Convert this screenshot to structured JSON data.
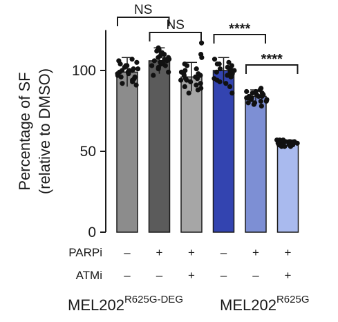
{
  "chart_data": {
    "type": "bar",
    "ylabel": "Percentage of SF",
    "ylabel_sub": "(relative to DMSO)",
    "ylim": [
      0,
      125
    ],
    "yticks": [
      0,
      50,
      100
    ],
    "grid": false,
    "conditions": [
      {
        "name": "PARPi",
        "values": [
          "–",
          "+",
          "+",
          "–",
          "+",
          "+"
        ]
      },
      {
        "name": "ATMi",
        "values": [
          "–",
          "–",
          "+",
          "–",
          "–",
          "+"
        ]
      }
    ],
    "groups": [
      {
        "name": "MEL202",
        "superscript": "R625G-DEG",
        "bars": [
          0,
          1,
          2
        ]
      },
      {
        "name": "MEL202",
        "superscript": "R625G",
        "bars": [
          3,
          4,
          5
        ]
      }
    ],
    "bars": [
      {
        "value": 99,
        "err": 9,
        "color": "#8c8c8c",
        "points": [
          93,
          96,
          99,
          101,
          103,
          97,
          100,
          105,
          91,
          95,
          102,
          98,
          104,
          100,
          94,
          107,
          97,
          101,
          99,
          96,
          103,
          92,
          100,
          98,
          106
        ]
      },
      {
        "value": 106,
        "err": 8,
        "color": "#5b5b5b",
        "points": [
          101,
          104,
          107,
          109,
          112,
          103,
          106,
          110,
          99,
          105,
          113,
          108,
          102,
          106,
          111,
          97,
          104,
          107,
          114,
          103,
          108,
          105
        ]
      },
      {
        "value": 96,
        "err": 9,
        "color": "#a6a6a6",
        "points": [
          88,
          92,
          95,
          98,
          101,
          90,
          94,
          97,
          100,
          104,
          86,
          93,
          96,
          99,
          91,
          95,
          103,
          117,
          108,
          110,
          97,
          89,
          94,
          98
        ]
      },
      {
        "value": 100,
        "err": 8,
        "color": "#3344b0",
        "points": [
          92,
          96,
          99,
          102,
          104,
          94,
          98,
          101,
          105,
          90,
          97,
          100,
          103,
          95,
          99,
          107,
          93,
          101,
          98,
          86,
          104,
          96,
          100
        ]
      },
      {
        "value": 84,
        "err": 4,
        "color": "#7d8fd4",
        "points": [
          79,
          81,
          83,
          85,
          87,
          80,
          82,
          84,
          86,
          88,
          78,
          83,
          85,
          81,
          84,
          89,
          82,
          86,
          80,
          84,
          83,
          87
        ]
      },
      {
        "value": 55,
        "err": 2,
        "color": "#a9baee",
        "points": [
          53,
          54,
          55,
          56,
          57,
          54,
          55,
          56,
          53,
          55,
          57,
          54,
          56,
          55,
          54,
          56,
          55,
          53,
          57,
          55
        ]
      }
    ],
    "annotations": [
      {
        "from": 0,
        "to": 1,
        "label": "NS"
      },
      {
        "from": 1,
        "to": 2,
        "label": "NS"
      },
      {
        "from": 3,
        "to": 4,
        "label": "****"
      },
      {
        "from": 4,
        "to": 5,
        "label": "****"
      }
    ]
  }
}
